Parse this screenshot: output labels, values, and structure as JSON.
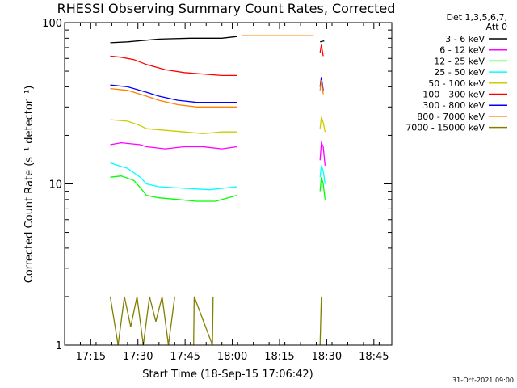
{
  "chart_data": {
    "type": "line",
    "title": "RHESSI Observing Summary Count Rates, Corrected",
    "xlabel": "Start Time (18-Sep-15 17:06:42)",
    "ylabel": "Corrected Count Rate (s⁻¹ detector⁻¹)",
    "y_scale": "log",
    "ylim": [
      1,
      100
    ],
    "xlim_minutes": [
      0,
      104
    ],
    "x_tick_minutes": [
      8.3,
      23.3,
      38.3,
      53.3,
      68.3,
      83.3,
      98.3
    ],
    "x_tick_labels": [
      "17:15",
      "17:30",
      "17:45",
      "18:00",
      "18:15",
      "18:30",
      "18:45"
    ],
    "y_ticks": [
      1,
      10,
      100
    ],
    "y_tick_labels": [
      "1",
      "10",
      "100"
    ],
    "grid": false,
    "legend_position": "right",
    "legend_header": [
      "Det 1,3,5,6,7,",
      "Att 0"
    ],
    "timestamp": "31-Oct-2021 09:00",
    "series": [
      {
        "name": "3 - 6 keV",
        "color": "#000000",
        "segments": [
          {
            "x": [
              14.5,
              20,
              30,
              40,
              50,
              54.8
            ],
            "y": [
              75,
              76,
              79,
              80,
              80,
              82
            ]
          },
          {
            "x": [
              81.2,
              82.5
            ],
            "y": [
              76,
              77
            ]
          }
        ]
      },
      {
        "name": "6 - 12 keV",
        "color": "#ff00ff",
        "segments": [
          {
            "x": [
              14.5,
              18,
              24,
              26,
              32,
              38,
              44,
              50,
              54.8
            ],
            "y": [
              17.5,
              18,
              17.5,
              17,
              16.5,
              17,
              17,
              16.5,
              17
            ]
          },
          {
            "x": [
              81.2,
              81.6,
              82.2,
              82.8
            ],
            "y": [
              14,
              18,
              17,
              13
            ]
          }
        ]
      },
      {
        "name": "12 - 25 keV",
        "color": "#00ff00",
        "segments": [
          {
            "x": [
              14.5,
              18,
              22,
              24,
              26,
              30,
              36,
              42,
              48,
              54.8
            ],
            "y": [
              11,
              11.2,
              10.5,
              9.5,
              8.5,
              8.2,
              8,
              7.8,
              7.8,
              8.5
            ]
          },
          {
            "x": [
              81.2,
              81.6,
              82.2,
              82.8
            ],
            "y": [
              9,
              11,
              10,
              8
            ]
          }
        ]
      },
      {
        "name": "25 - 50 keV",
        "color": "#00ffff",
        "segments": [
          {
            "x": [
              14.5,
              17,
              20,
              24,
              26,
              30,
              38,
              46,
              54.8
            ],
            "y": [
              13.5,
              13,
              12.5,
              11,
              10,
              9.6,
              9.4,
              9.2,
              9.6
            ]
          },
          {
            "x": [
              81.2,
              81.6,
              82.2,
              82.8
            ],
            "y": [
              11,
              13,
              12,
              10
            ]
          }
        ]
      },
      {
        "name": "50 - 100 keV",
        "color": "#cccc00",
        "segments": [
          {
            "x": [
              14.5,
              20,
              24,
              26,
              32,
              38,
              44,
              50,
              54.8
            ],
            "y": [
              25,
              24.5,
              23,
              22,
              21.5,
              21,
              20.5,
              21,
              21
            ]
          },
          {
            "x": [
              81.2,
              81.6,
              82.2,
              82.8
            ],
            "y": [
              22,
              26,
              24,
              21
            ]
          }
        ]
      },
      {
        "name": "100 - 300 keV",
        "color": "#ff0000",
        "segments": [
          {
            "x": [
              14.5,
              18,
              22,
              26,
              32,
              38,
              44,
              50,
              54.8
            ],
            "y": [
              62,
              61,
              59,
              55,
              51,
              49,
              48,
              47,
              47
            ]
          },
          {
            "x": [
              81.2,
              81.6,
              82.2
            ],
            "y": [
              65,
              73,
              62
            ]
          }
        ]
      },
      {
        "name": "300 - 800 keV",
        "color": "#0000ff",
        "segments": [
          {
            "x": [
              14.5,
              20,
              26,
              30,
              36,
              42,
              48,
              54.8
            ],
            "y": [
              41,
              40,
              37,
              35,
              33,
              32,
              32,
              32
            ]
          },
          {
            "x": [
              81.2,
              81.6,
              82.2
            ],
            "y": [
              40,
              46,
              38
            ]
          }
        ]
      },
      {
        "name": "800 - 7000 keV",
        "color": "#ff8000",
        "segments": [
          {
            "x": [
              14.5,
              20,
              26,
              30,
              36,
              42,
              48,
              54.8
            ],
            "y": [
              39,
              38,
              35,
              33,
              31,
              30,
              30,
              30
            ]
          },
          {
            "x": [
              56.2,
              79.2
            ],
            "y": [
              83,
              83
            ]
          },
          {
            "x": [
              81.2,
              81.6,
              82.2
            ],
            "y": [
              38,
              44,
              36
            ]
          }
        ]
      },
      {
        "name": "7000 - 15000 keV",
        "color": "#808000",
        "segments": [
          {
            "x": [
              14.5,
              17,
              19,
              21,
              23,
              25,
              27,
              29,
              31,
              33,
              35
            ],
            "y": [
              2,
              1,
              2,
              1.3,
              2,
              1,
              2,
              1.4,
              2,
              1,
              2
            ]
          },
          {
            "x": [
              41,
              41.2,
              47,
              47.2
            ],
            "y": [
              1,
              2,
              1,
              2
            ]
          },
          {
            "x": [
              81.2,
              81.6
            ],
            "y": [
              1,
              2
            ]
          }
        ]
      }
    ]
  }
}
